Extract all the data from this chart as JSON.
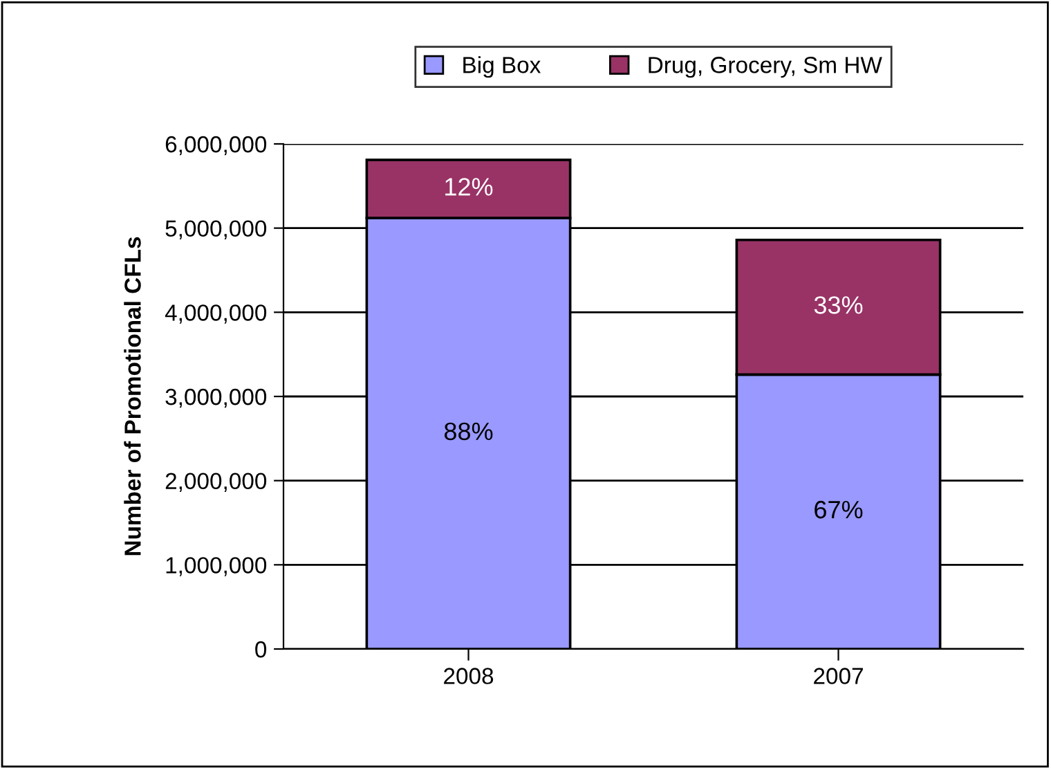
{
  "chart_data": {
    "type": "bar",
    "stacked": true,
    "ylabel": "Number of Promotional CFLs",
    "categories": [
      "2008",
      "2007"
    ],
    "series": [
      {
        "name": "Big Box",
        "color": "#9999ff",
        "values": [
          5120000,
          3260000
        ]
      },
      {
        "name": "Drug, Grocery, Sm HW",
        "color": "#993366",
        "values": [
          690000,
          1600000
        ]
      }
    ],
    "annotations": [
      "88%",
      "67%",
      "12%",
      "33%"
    ],
    "ylim": [
      0,
      6000000
    ],
    "yticks": [
      {
        "value": 0,
        "label": "0"
      },
      {
        "value": 1000000,
        "label": "1,000,000"
      },
      {
        "value": 2000000,
        "label": "2,000,000"
      },
      {
        "value": 3000000,
        "label": "3,000,000"
      },
      {
        "value": 4000000,
        "label": "4,000,000"
      },
      {
        "value": 5000000,
        "label": "5,000,000"
      },
      {
        "value": 6000000,
        "label": "6,000,000"
      }
    ],
    "grid": "y",
    "legend": "top"
  }
}
